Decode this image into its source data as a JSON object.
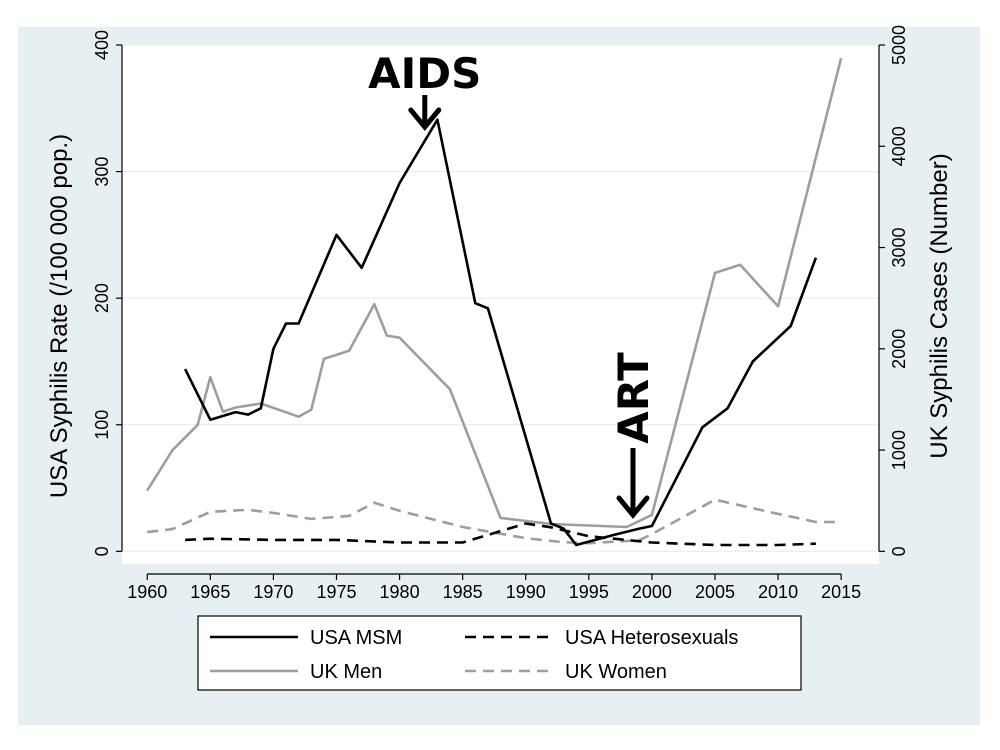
{
  "chart_data": {
    "type": "line",
    "title": "",
    "xlabel": "",
    "ylabel": "USA Syphilis Rate (/100 000 pop.)",
    "y2label": "UK Syphilis Cases (Number)",
    "xlim": [
      1958,
      2018
    ],
    "ylim": [
      -10,
      400
    ],
    "y2lim": [
      -125,
      5000
    ],
    "x_ticks": [
      1960,
      1965,
      1970,
      1975,
      1980,
      1985,
      1990,
      1995,
      2000,
      2005,
      2010,
      2015
    ],
    "y_ticks": [
      0,
      100,
      200,
      300,
      400
    ],
    "y2_ticks": [
      0,
      1000,
      2000,
      3000,
      4000,
      5000
    ],
    "grid": true,
    "legend_position": "bottom",
    "series": [
      {
        "name": "USA MSM",
        "axis": "left",
        "color": "#000000",
        "dash": "solid",
        "x": [
          1963,
          1965,
          1967,
          1968,
          1969,
          1970,
          1971,
          1972,
          1975,
          1977,
          1980,
          1983,
          1986,
          1987,
          1992,
          1993,
          1994,
          1997,
          1999,
          2000,
          2004,
          2006,
          2008,
          2011,
          2013
        ],
        "y": [
          144,
          104,
          110,
          108,
          113,
          160,
          180,
          180,
          250,
          224,
          291,
          341,
          196,
          192,
          22,
          18,
          5,
          13,
          18,
          20,
          98,
          113,
          150,
          178,
          232
        ]
      },
      {
        "name": "USA Heterosexuals",
        "axis": "left",
        "color": "#000000",
        "dash": "dashed",
        "x": [
          1963,
          1965,
          1970,
          1975,
          1980,
          1985,
          1990,
          1992,
          1995,
          2000,
          2005,
          2010,
          2013
        ],
        "y": [
          9,
          10,
          9,
          9,
          7,
          7,
          22,
          19,
          12,
          7,
          5,
          5,
          6
        ]
      },
      {
        "name": "UK Men",
        "axis": "right",
        "color": "#9e9e9e",
        "dash": "solid",
        "x": [
          1960,
          1962,
          1964,
          1965,
          1966,
          1967,
          1969,
          1972,
          1973,
          1974,
          1976,
          1978,
          1979,
          1980,
          1984,
          1988,
          1992,
          1998,
          2000,
          2005,
          2007,
          2010,
          2015
        ],
        "y": [
          600,
          1000,
          1250,
          1720,
          1380,
          1420,
          1460,
          1330,
          1400,
          1900,
          1980,
          2440,
          2130,
          2110,
          1600,
          330,
          270,
          240,
          360,
          2750,
          2830,
          2420,
          4870
        ]
      },
      {
        "name": "UK Women",
        "axis": "right",
        "color": "#9e9e9e",
        "dash": "dashed",
        "x": [
          1960,
          1962,
          1965,
          1968,
          1970,
          1972,
          1973,
          1976,
          1978,
          1980,
          1985,
          1990,
          1993,
          1995,
          1999,
          2000,
          2005,
          2010,
          2013,
          2015
        ],
        "y": [
          190,
          220,
          390,
          410,
          380,
          340,
          320,
          350,
          480,
          400,
          240,
          130,
          90,
          80,
          110,
          170,
          510,
          370,
          290,
          290
        ]
      }
    ],
    "annotations": [
      {
        "text": "AIDS",
        "x": 1982,
        "orientation": "horizontal"
      },
      {
        "text": "ART",
        "x": 1998.5,
        "orientation": "vertical"
      }
    ]
  }
}
